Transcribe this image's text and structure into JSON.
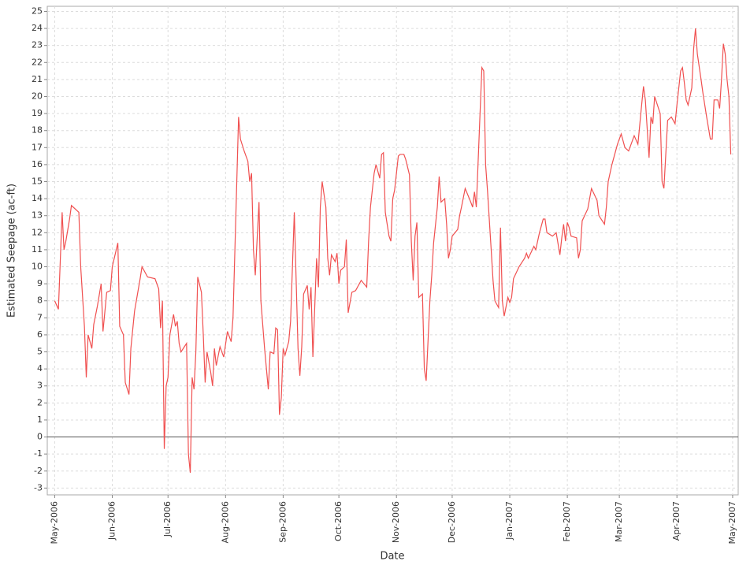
{
  "chart_data": {
    "type": "line",
    "x_label": "Date",
    "y_label": "Estimated Seepage (ac-ft)",
    "x": [
      "2006-05-01",
      "2006-05-03",
      "2006-05-05",
      "2006-05-06",
      "2006-05-07",
      "2006-05-09",
      "2006-05-10",
      "2006-05-14",
      "2006-05-15",
      "2006-05-17",
      "2006-05-18",
      "2006-05-19",
      "2006-05-21",
      "2006-05-22",
      "2006-05-24",
      "2006-05-26",
      "2006-05-27",
      "2006-05-29",
      "2006-05-31",
      "2006-06-01",
      "2006-06-04",
      "2006-06-05",
      "2006-06-07",
      "2006-06-08",
      "2006-06-10",
      "2006-06-11",
      "2006-06-13",
      "2006-06-16",
      "2006-06-17",
      "2006-06-20",
      "2006-06-24",
      "2006-06-26",
      "2006-06-27",
      "2006-06-28",
      "2006-06-29",
      "2006-06-30",
      "2006-07-01",
      "2006-07-02",
      "2006-07-04",
      "2006-07-05",
      "2006-07-06",
      "2006-07-07",
      "2006-07-08",
      "2006-07-11",
      "2006-07-12",
      "2006-07-13",
      "2006-07-14",
      "2006-07-15",
      "2006-07-16",
      "2006-07-17",
      "2006-07-19",
      "2006-07-20",
      "2006-07-21",
      "2006-07-22",
      "2006-07-24",
      "2006-07-25",
      "2006-07-26",
      "2006-07-27",
      "2006-07-29",
      "2006-07-31",
      "2006-08-02",
      "2006-08-04",
      "2006-08-05",
      "2006-08-08",
      "2006-08-09",
      "2006-08-11",
      "2006-08-13",
      "2006-08-14",
      "2006-08-15",
      "2006-08-16",
      "2006-08-17",
      "2006-08-19",
      "2006-08-20",
      "2006-08-22",
      "2006-08-24",
      "2006-08-25",
      "2006-08-27",
      "2006-08-28",
      "2006-08-29",
      "2006-08-30",
      "2006-08-31",
      "2006-09-01",
      "2006-09-02",
      "2006-09-04",
      "2006-09-05",
      "2006-09-06",
      "2006-09-07",
      "2006-09-09",
      "2006-09-10",
      "2006-09-11",
      "2006-09-12",
      "2006-09-14",
      "2006-09-15",
      "2006-09-16",
      "2006-09-17",
      "2006-09-19",
      "2006-09-20",
      "2006-09-21",
      "2006-09-22",
      "2006-09-24",
      "2006-09-25",
      "2006-09-26",
      "2006-09-27",
      "2006-09-29",
      "2006-09-30",
      "2006-10-01",
      "2006-10-02",
      "2006-10-04",
      "2006-10-05",
      "2006-10-06",
      "2006-10-08",
      "2006-10-10",
      "2006-10-13",
      "2006-10-16",
      "2006-10-17",
      "2006-10-18",
      "2006-10-20",
      "2006-10-21",
      "2006-10-23",
      "2006-10-24",
      "2006-10-25",
      "2006-10-26",
      "2006-10-28",
      "2006-10-29",
      "2006-10-30",
      "2006-10-31",
      "2006-11-02",
      "2006-11-03",
      "2006-11-05",
      "2006-11-06",
      "2006-11-08",
      "2006-11-09",
      "2006-11-10",
      "2006-11-11",
      "2006-11-12",
      "2006-11-13",
      "2006-11-15",
      "2006-11-16",
      "2006-11-17",
      "2006-11-19",
      "2006-11-20",
      "2006-11-21",
      "2006-11-23",
      "2006-11-24",
      "2006-11-25",
      "2006-11-27",
      "2006-11-28",
      "2006-11-29",
      "2006-11-30",
      "2006-12-01",
      "2006-12-04",
      "2006-12-05",
      "2006-12-06",
      "2006-12-08",
      "2006-12-11",
      "2006-12-12",
      "2006-12-13",
      "2006-12-14",
      "2006-12-16",
      "2006-12-17",
      "2006-12-18",
      "2006-12-19",
      "2006-12-20",
      "2006-12-22",
      "2006-12-23",
      "2006-12-24",
      "2006-12-26",
      "2006-12-27",
      "2006-12-28",
      "2006-12-29",
      "2006-12-31",
      "2007-01-01",
      "2007-01-02",
      "2007-01-03",
      "2007-01-06",
      "2007-01-09",
      "2007-01-10",
      "2007-01-11",
      "2007-01-14",
      "2007-01-15",
      "2007-01-16",
      "2007-01-17",
      "2007-01-19",
      "2007-01-20",
      "2007-01-21",
      "2007-01-24",
      "2007-01-26",
      "2007-01-28",
      "2007-01-29",
      "2007-01-30",
      "2007-01-31",
      "2007-02-01",
      "2007-02-02",
      "2007-02-03",
      "2007-02-06",
      "2007-02-07",
      "2007-02-08",
      "2007-02-09",
      "2007-02-12",
      "2007-02-14",
      "2007-02-17",
      "2007-02-18",
      "2007-02-21",
      "2007-02-22",
      "2007-02-23",
      "2007-02-25",
      "2007-02-28",
      "2007-03-02",
      "2007-03-04",
      "2007-03-06",
      "2007-03-09",
      "2007-03-11",
      "2007-03-13",
      "2007-03-14",
      "2007-03-15",
      "2007-03-17",
      "2007-03-18",
      "2007-03-19",
      "2007-03-20",
      "2007-03-23",
      "2007-03-24",
      "2007-03-25",
      "2007-03-27",
      "2007-03-29",
      "2007-03-31",
      "2007-04-01",
      "2007-04-03",
      "2007-04-04",
      "2007-04-05",
      "2007-04-06",
      "2007-04-07",
      "2007-04-09",
      "2007-04-10",
      "2007-04-11",
      "2007-04-12",
      "2007-04-14",
      "2007-04-15",
      "2007-04-17",
      "2007-04-19",
      "2007-04-20",
      "2007-04-21",
      "2007-04-23",
      "2007-04-24",
      "2007-04-25",
      "2007-04-26",
      "2007-04-27",
      "2007-04-28",
      "2007-04-29",
      "2007-04-30"
    ],
    "values": [
      8.0,
      7.5,
      13.2,
      11,
      11.5,
      12.8,
      13.6,
      13.2,
      10,
      6.5,
      3.5,
      6,
      5.2,
      6.6,
      7.7,
      9,
      6.2,
      8.5,
      8.6,
      10,
      11.4,
      6.5,
      6,
      3.2,
      2.5,
      5.2,
      7.4,
      9.3,
      10,
      9.4,
      9.3,
      8.7,
      6.4,
      8,
      -0.7,
      3,
      3.5,
      6,
      7.2,
      6.5,
      6.8,
      5.5,
      5,
      5.5,
      -1,
      -2.1,
      3.5,
      2.8,
      5,
      9.4,
      8.5,
      6,
      3.2,
      5,
      3.8,
      3,
      5.2,
      4.2,
      5.3,
      4.7,
      6.2,
      5.6,
      7,
      18.8,
      17.5,
      16.8,
      16.2,
      15,
      15.5,
      11,
      9.5,
      13.8,
      8,
      5.2,
      2.8,
      5,
      4.9,
      6.4,
      6.3,
      1.3,
      2.3,
      5.2,
      4.8,
      5.6,
      6.8,
      10,
      13.2,
      5.2,
      3.6,
      5.3,
      8.4,
      8.9,
      7.5,
      8.8,
      4.7,
      10.5,
      8.8,
      13.5,
      15,
      13.5,
      10.5,
      9.5,
      10.7,
      10.3,
      10.8,
      9,
      9.8,
      10,
      11.6,
      7.3,
      8.5,
      8.6,
      9.2,
      8.8,
      11.5,
      13.5,
      15.5,
      16,
      15.2,
      16.6,
      16.7,
      13.2,
      11.8,
      11.5,
      14,
      14.5,
      16.5,
      16.6,
      16.6,
      16.3,
      15.4,
      11.5,
      9.2,
      11.8,
      12.6,
      8.2,
      8.4,
      4,
      3.3,
      8,
      9.5,
      11.4,
      13.5,
      15.3,
      13.8,
      14,
      12.5,
      10.5,
      11,
      11.8,
      12.2,
      13,
      13.5,
      14.6,
      13.8,
      13.5,
      14.4,
      13.5,
      19,
      21.7,
      21.5,
      16,
      14.5,
      11,
      9.2,
      8,
      7.6,
      12.3,
      8,
      7.1,
      8.2,
      7.9,
      8.2,
      9.3,
      10,
      10.5,
      10.8,
      10.5,
      11.2,
      11,
      11.5,
      12,
      12.8,
      12.8,
      12,
      11.8,
      12,
      10.7,
      11.7,
      12.5,
      11.5,
      12.6,
      12.3,
      11.8,
      11.7,
      10.5,
      11,
      12.7,
      13.4,
      14.6,
      13.9,
      13,
      12.5,
      13.5,
      15,
      16,
      17.2,
      17.8,
      17,
      16.8,
      17.7,
      17.2,
      19.5,
      20.6,
      19.8,
      16.4,
      18.8,
      18.4,
      20,
      19,
      15,
      14.6,
      18.6,
      18.8,
      18.4,
      19.5,
      21.5,
      21.7,
      20.8,
      19.8,
      19.5,
      20.5,
      22.8,
      24,
      22.5,
      21,
      20.2,
      18.8,
      17.5,
      17.5,
      19.8,
      19.8,
      19.3,
      21,
      23.1,
      22.5,
      21,
      20,
      16.6
    ],
    "color": "#f05050",
    "xlim": [
      "2006-04-27",
      "2007-05-04"
    ],
    "xticks": [
      {
        "value": "2006-05-01",
        "label": "May-2006"
      },
      {
        "value": "2006-06-01",
        "label": "Jun-2006"
      },
      {
        "value": "2006-07-01",
        "label": "Jul-2006"
      },
      {
        "value": "2006-08-01",
        "label": "Aug-2006"
      },
      {
        "value": "2006-09-01",
        "label": "Sep-2006"
      },
      {
        "value": "2006-10-01",
        "label": "Oct-2006"
      },
      {
        "value": "2006-11-01",
        "label": "Nov-2006"
      },
      {
        "value": "2006-12-01",
        "label": "Dec-2006"
      },
      {
        "value": "2007-01-01",
        "label": "Jan-2007"
      },
      {
        "value": "2007-02-01",
        "label": "Feb-2007"
      },
      {
        "value": "2007-03-01",
        "label": "Mar-2007"
      },
      {
        "value": "2007-04-01",
        "label": "Apr-2007"
      },
      {
        "value": "2007-05-01",
        "label": "May-2007"
      }
    ],
    "ylim": [
      -3.4,
      25.3
    ],
    "yticks": [
      -3,
      -2,
      -1,
      0,
      1,
      2,
      3,
      4,
      5,
      6,
      7,
      8,
      9,
      10,
      11,
      12,
      13,
      14,
      15,
      16,
      17,
      18,
      19,
      20,
      21,
      22,
      23,
      24,
      25
    ],
    "grid": true,
    "zero_line": true
  }
}
